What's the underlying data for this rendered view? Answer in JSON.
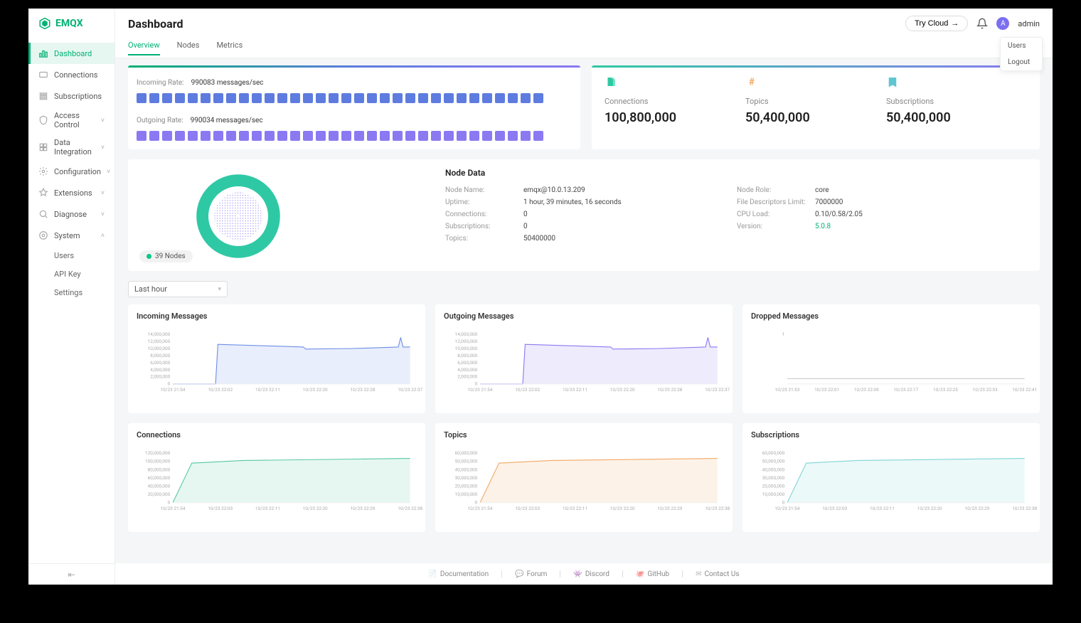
{
  "brand": "EMQX",
  "colors": {
    "accent": "#00b173",
    "blue": "#5e7ce0",
    "purple": "#7b6ff0",
    "blockBlue": "#5e7ce0",
    "blockPurple": "#8b79f2",
    "donutOuter": "#2ec9a4",
    "donutInner": "#9e90f5",
    "chartBlue": "#6e8fe8",
    "chartPurple": "#8b79f2",
    "chartGreen": "#57c7a4",
    "chartOrange": "#f2a864",
    "chartCyan": "#7fd4d4"
  },
  "header": {
    "title": "Dashboard",
    "tryCloud": "Try Cloud",
    "user": "admin",
    "avatarLetter": "A",
    "userMenu": [
      "Users",
      "Logout"
    ]
  },
  "tabs": [
    {
      "label": "Overview",
      "active": true
    },
    {
      "label": "Nodes"
    },
    {
      "label": "Metrics"
    }
  ],
  "sidebar": [
    {
      "icon": "dashboard",
      "label": "Dashboard",
      "active": true
    },
    {
      "icon": "connections",
      "label": "Connections"
    },
    {
      "icon": "subscriptions",
      "label": "Subscriptions"
    },
    {
      "icon": "access",
      "label": "Access Control",
      "expandable": true
    },
    {
      "icon": "integration",
      "label": "Data Integration",
      "expandable": true
    },
    {
      "icon": "config",
      "label": "Configuration",
      "expandable": true
    },
    {
      "icon": "extensions",
      "label": "Extensions",
      "expandable": true
    },
    {
      "icon": "diagnose",
      "label": "Diagnose",
      "expandable": true
    },
    {
      "icon": "system",
      "label": "System",
      "expandable": true,
      "expanded": true,
      "children": [
        "Users",
        "API Key",
        "Settings"
      ]
    }
  ],
  "rates": {
    "incoming": {
      "label": "Incoming Rate:",
      "value": "990083 messages/sec",
      "blockCount": 32
    },
    "outgoing": {
      "label": "Outgoing Rate:",
      "value": "990034 messages/sec",
      "blockCount": 32
    },
    "gradient": "linear-gradient(90deg,#00b173,#5e7ce0,#8b79f2)"
  },
  "stats": [
    {
      "icon": "conn",
      "color": "#2ec9a4",
      "label": "Connections",
      "value": "100,800,000"
    },
    {
      "icon": "hash",
      "color": "#f2a864",
      "label": "Topics",
      "value": "50,400,000"
    },
    {
      "icon": "sub",
      "color": "#5ec6d0",
      "label": "Subscriptions",
      "value": "50,400,000"
    }
  ],
  "statsGradient": "linear-gradient(90deg,#2ec9a4,#8b79f2)",
  "nodes": {
    "badge": "39 Nodes",
    "title": "Node Data",
    "left": [
      {
        "k": "Node Name:",
        "v": "emqx@10.0.13.209"
      },
      {
        "k": "Uptime:",
        "v": "1 hour, 39 minutes, 16 seconds"
      },
      {
        "k": "Connections:",
        "v": "0"
      },
      {
        "k": "Subscriptions:",
        "v": "0"
      },
      {
        "k": "Topics:",
        "v": "50400000"
      }
    ],
    "right": [
      {
        "k": "Node Role:",
        "v": "core"
      },
      {
        "k": "File Descriptors Limit:",
        "v": "7000000"
      },
      {
        "k": "CPU Load:",
        "v": "0.10/0.58/2.05"
      },
      {
        "k": "Version:",
        "v": "5.0.8",
        "link": true
      }
    ]
  },
  "range": "Last hour",
  "charts": [
    {
      "title": "Incoming Messages",
      "color": "#6e8fe8",
      "fill": "rgba(110,143,232,0.15)",
      "yticks": [
        "14,000,000",
        "12,000,000",
        "10,000,000",
        "8,000,000",
        "6,000,000",
        "4,000,000",
        "2,000,000",
        "0"
      ],
      "xticks": [
        "10/23 21:54",
        "10/23 22:02",
        "10/23 22:11",
        "10/23 22:20",
        "10/23 22:28",
        "10/23 22:37"
      ],
      "shape": "step"
    },
    {
      "title": "Outgoing Messages",
      "color": "#8b79f2",
      "fill": "rgba(139,121,242,0.15)",
      "yticks": [
        "14,000,000",
        "12,000,000",
        "10,000,000",
        "8,000,000",
        "6,000,000",
        "4,000,000",
        "2,000,000",
        "0"
      ],
      "xticks": [
        "10/23 21:54",
        "10/23 22:02",
        "10/23 22:11",
        "10/23 22:20",
        "10/23 22:28",
        "10/23 22:37"
      ],
      "shape": "step"
    },
    {
      "title": "Dropped Messages",
      "color": "#cccccc",
      "fill": "none",
      "yticks": [
        "1"
      ],
      "xticks": [
        "10/23 21:53",
        "10/23 22:01",
        "10/23 22:09",
        "10/23 22:17",
        "10/23 22:25",
        "10/23 22:33",
        "10/23 22:41"
      ],
      "shape": "flat"
    },
    {
      "title": "Connections",
      "color": "#57c7a4",
      "fill": "rgba(87,199,164,0.15)",
      "yticks": [
        "120,000,000",
        "100,000,000",
        "80,000,000",
        "60,000,000",
        "40,000,000",
        "20,000,000",
        "0"
      ],
      "xticks": [
        "10/23 21:54",
        "10/23 22:03",
        "10/23 22:11",
        "10/23 22:20",
        "10/23 22:29",
        "10/23 22:38"
      ],
      "shape": "rise"
    },
    {
      "title": "Topics",
      "color": "#f2a864",
      "fill": "rgba(242,168,100,0.15)",
      "yticks": [
        "60,000,000",
        "50,000,000",
        "40,000,000",
        "30,000,000",
        "20,000,000",
        "10,000,000",
        "0"
      ],
      "xticks": [
        "10/23 21:54",
        "10/23 22:03",
        "10/23 22:11",
        "10/23 22:20",
        "10/23 22:29",
        "10/23 22:38"
      ],
      "shape": "rise"
    },
    {
      "title": "Subscriptions",
      "color": "#7fd4d4",
      "fill": "rgba(127,212,212,0.15)",
      "yticks": [
        "60,000,000",
        "50,000,000",
        "40,000,000",
        "30,000,000",
        "20,000,000",
        "10,000,000",
        "0"
      ],
      "xticks": [
        "10/23 21:54",
        "10/23 22:03",
        "10/23 22:11",
        "10/23 22:20",
        "10/23 22:29",
        "10/23 22:38"
      ],
      "shape": "rise"
    }
  ],
  "footer": [
    "Documentation",
    "Forum",
    "Discord",
    "GitHub",
    "Contact Us"
  ]
}
